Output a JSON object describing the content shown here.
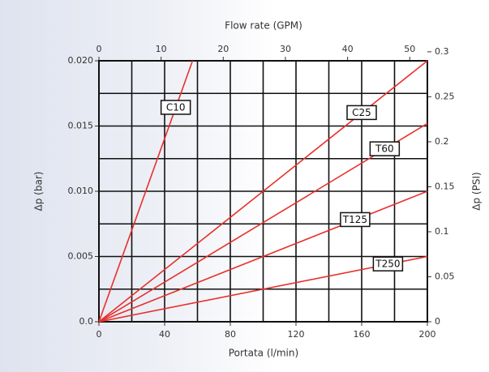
{
  "chart_data": {
    "type": "line",
    "title": "Flow rate (GPM)",
    "x_label": "Portata (l/min)",
    "y_label": "Δp (bar)",
    "y2_label": "Δp (PSI)",
    "xlim": [
      0,
      200
    ],
    "xticks": [
      0,
      40,
      80,
      120,
      160,
      200
    ],
    "minor_xticks": [
      20,
      60,
      100,
      140,
      180
    ],
    "x2lim": [
      0,
      52.83
    ],
    "x2ticks": [
      0,
      10,
      20,
      30,
      40,
      50
    ],
    "ylim": [
      0,
      0.02
    ],
    "yticks": [
      {
        "value": 0,
        "label": "0.0"
      },
      0.005,
      {
        "value": 0.01,
        "label": "0.010"
      },
      0.015,
      {
        "value": 0.02,
        "label": "0.020"
      }
    ],
    "minor_yticks": [
      0.0025,
      0.0075,
      0.0125,
      0.0175
    ],
    "y2lim": [
      0,
      0.29
    ],
    "y2ticks": [
      0,
      0.05,
      0.1,
      0.15,
      0.2,
      0.25,
      0.3
    ],
    "grid": true,
    "series": [
      {
        "name": "C10",
        "color": "#e8302c",
        "x": [
          0,
          57
        ],
        "values": [
          0,
          0.02
        ]
      },
      {
        "name": "C25",
        "color": "#e8302c",
        "x": [
          0,
          200
        ],
        "values": [
          0,
          0.02
        ]
      },
      {
        "name": "T60",
        "color": "#e8302c",
        "x": [
          0,
          200
        ],
        "values": [
          0,
          0.0152
        ]
      },
      {
        "name": "T125",
        "color": "#e8302c",
        "x": [
          0,
          200
        ],
        "values": [
          0,
          0.01
        ]
      },
      {
        "name": "T250",
        "color": "#e8302c",
        "x": [
          0,
          200
        ],
        "values": [
          0,
          0.005
        ]
      }
    ]
  }
}
